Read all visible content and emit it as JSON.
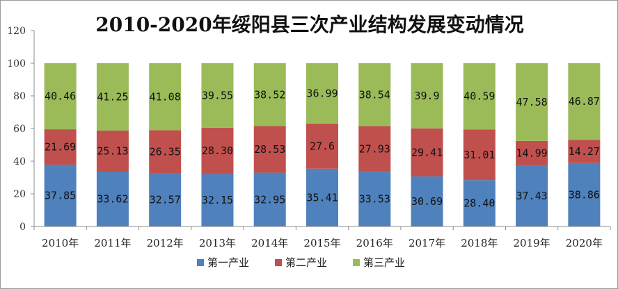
{
  "chart_data": {
    "type": "bar",
    "stacked": true,
    "title": "2010-2020年绥阳县三次产业结构发展变动情况",
    "xlabel": "",
    "ylabel": "",
    "ylim": [
      0,
      120
    ],
    "yticks": [
      "0",
      "20",
      "40",
      "60",
      "80",
      "100",
      "120"
    ],
    "grid": false,
    "legend_position": "bottom",
    "categories": [
      "2010年",
      "2011年",
      "2012年",
      "2013年",
      "2014年",
      "2015年",
      "2016年",
      "2017年",
      "2018年",
      "2019年",
      "2020年"
    ],
    "series": [
      {
        "name": "第一产业",
        "color": "#4F81BD",
        "values": [
          37.85,
          33.62,
          32.57,
          32.15,
          32.95,
          35.41,
          33.53,
          30.69,
          28.4,
          37.43,
          38.86
        ],
        "labels": [
          "37.85",
          "33.62",
          "32.57",
          "32.15",
          "32.95",
          "35.41",
          "33.53",
          "30.69",
          "28.40",
          "37.43",
          "38.86"
        ]
      },
      {
        "name": "第二产业",
        "color": "#C0504D",
        "values": [
          21.69,
          25.13,
          26.35,
          28.3,
          28.53,
          27.6,
          27.93,
          29.41,
          31.01,
          14.99,
          14.27
        ],
        "labels": [
          "21.69",
          "25.13",
          "26.35",
          "28.30",
          "28.53",
          "27.6",
          "27.93",
          "29.41",
          "31.01",
          "14.99",
          "14.27"
        ]
      },
      {
        "name": "第三产业",
        "color": "#9BBB59",
        "values": [
          40.46,
          41.25,
          41.08,
          39.55,
          38.52,
          36.99,
          38.54,
          39.9,
          40.59,
          47.58,
          46.87
        ],
        "labels": [
          "40.46",
          "41.25",
          "41.08",
          "39.55",
          "38.52",
          "36.99",
          "38.54",
          "39.9",
          "40.59",
          "47.58",
          "46.87"
        ]
      }
    ]
  }
}
